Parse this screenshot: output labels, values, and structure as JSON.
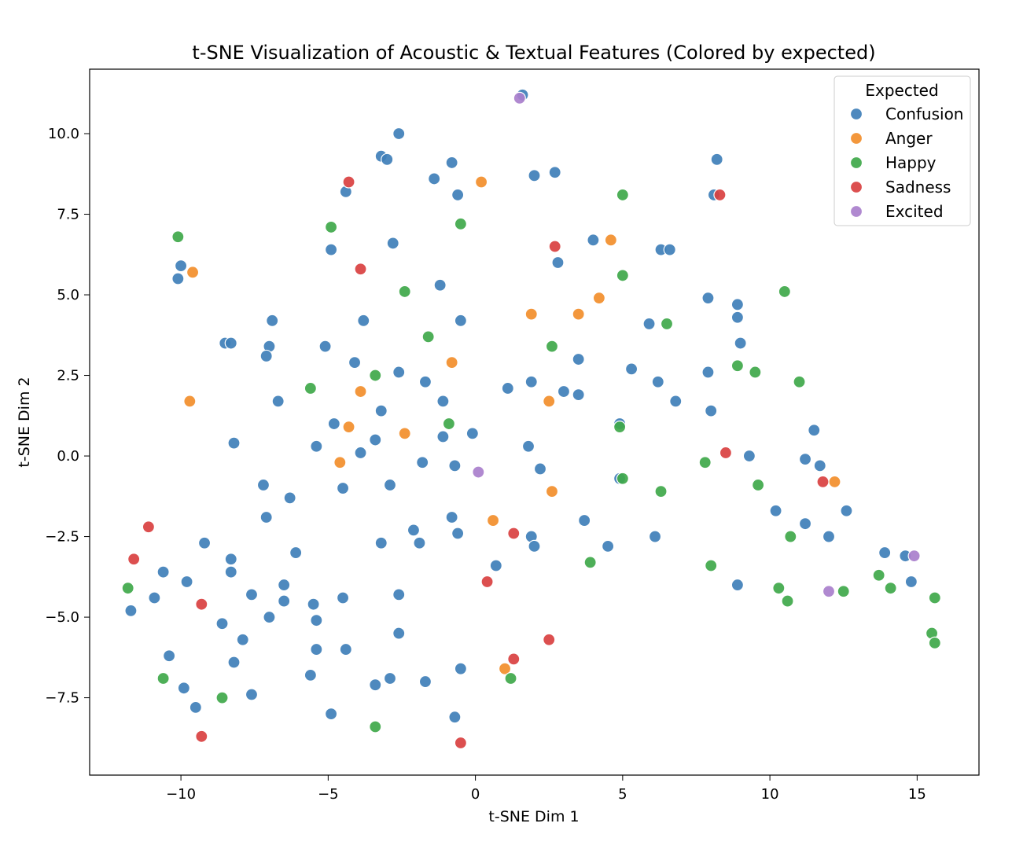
{
  "chart_data": {
    "type": "scatter",
    "title": "t-SNE Visualization of Acoustic & Textual Features (Colored by expected)",
    "xlabel": "t-SNE Dim 1",
    "ylabel": "t-SNE Dim 2",
    "xlim": [
      -13.1,
      17.1
    ],
    "ylim": [
      -9.9,
      12.0
    ],
    "xticks": [
      -10,
      -5,
      0,
      5,
      10,
      15
    ],
    "xtick_labels": [
      "−10",
      "−5",
      "0",
      "5",
      "10",
      "15"
    ],
    "yticks": [
      -7.5,
      -5.0,
      -2.5,
      0.0,
      2.5,
      5.0,
      7.5,
      10.0
    ],
    "ytick_labels": [
      "−7.5",
      "−5.0",
      "−2.5",
      "0.0",
      "2.5",
      "5.0",
      "7.5",
      "10.0"
    ],
    "grid": false,
    "legend": {
      "title": "Expected",
      "placement": "top-right"
    },
    "series": [
      {
        "name": "Confusion",
        "color": "#3f7fb8",
        "points": [
          [
            1.6,
            11.2
          ],
          [
            -2.6,
            10.0
          ],
          [
            -3.2,
            9.3
          ],
          [
            -3.0,
            9.2
          ],
          [
            -0.8,
            9.1
          ],
          [
            8.2,
            9.2
          ],
          [
            -4.4,
            8.2
          ],
          [
            -1.4,
            8.6
          ],
          [
            2.0,
            8.7
          ],
          [
            2.7,
            8.8
          ],
          [
            -0.6,
            8.1
          ],
          [
            8.1,
            8.1
          ],
          [
            -10.0,
            5.9
          ],
          [
            -10.1,
            5.5
          ],
          [
            -4.9,
            6.4
          ],
          [
            -2.8,
            6.6
          ],
          [
            4.0,
            6.7
          ],
          [
            2.8,
            6.0
          ],
          [
            6.3,
            6.4
          ],
          [
            6.6,
            6.4
          ],
          [
            -1.2,
            5.3
          ],
          [
            7.9,
            4.9
          ],
          [
            8.9,
            4.7
          ],
          [
            8.9,
            4.3
          ],
          [
            -6.9,
            4.2
          ],
          [
            -3.8,
            4.2
          ],
          [
            -0.5,
            4.2
          ],
          [
            5.9,
            4.1
          ],
          [
            -8.5,
            3.5
          ],
          [
            -8.3,
            3.5
          ],
          [
            -7.0,
            3.4
          ],
          [
            -5.1,
            3.4
          ],
          [
            -7.1,
            3.1
          ],
          [
            -4.1,
            2.9
          ],
          [
            3.5,
            3.0
          ],
          [
            9.0,
            3.5
          ],
          [
            -2.6,
            2.6
          ],
          [
            -1.7,
            2.3
          ],
          [
            1.9,
            2.3
          ],
          [
            5.3,
            2.7
          ],
          [
            6.2,
            2.3
          ],
          [
            7.9,
            2.6
          ],
          [
            1.1,
            2.1
          ],
          [
            3.0,
            2.0
          ],
          [
            3.5,
            1.9
          ],
          [
            6.8,
            1.7
          ],
          [
            -6.7,
            1.7
          ],
          [
            -1.1,
            1.7
          ],
          [
            -3.2,
            1.4
          ],
          [
            8.0,
            1.4
          ],
          [
            -4.8,
            1.0
          ],
          [
            4.9,
            1.0
          ],
          [
            11.5,
            0.8
          ],
          [
            -8.2,
            0.4
          ],
          [
            -5.4,
            0.3
          ],
          [
            -3.4,
            0.5
          ],
          [
            -1.1,
            0.6
          ],
          [
            -0.1,
            0.7
          ],
          [
            -3.9,
            0.1
          ],
          [
            1.8,
            0.3
          ],
          [
            9.3,
            0.0
          ],
          [
            11.2,
            -0.1
          ],
          [
            11.7,
            -0.3
          ],
          [
            -1.8,
            -0.2
          ],
          [
            -0.7,
            -0.3
          ],
          [
            2.2,
            -0.4
          ],
          [
            4.9,
            -0.7
          ],
          [
            -7.2,
            -0.9
          ],
          [
            -4.5,
            -1.0
          ],
          [
            -2.9,
            -0.9
          ],
          [
            -6.3,
            -1.3
          ],
          [
            10.2,
            -1.7
          ],
          [
            12.6,
            -1.7
          ],
          [
            -7.1,
            -1.9
          ],
          [
            -0.8,
            -1.9
          ],
          [
            3.7,
            -2.0
          ],
          [
            11.2,
            -2.1
          ],
          [
            -2.1,
            -2.3
          ],
          [
            -0.6,
            -2.4
          ],
          [
            6.1,
            -2.5
          ],
          [
            12.0,
            -2.5
          ],
          [
            1.9,
            -2.5
          ],
          [
            -9.2,
            -2.7
          ],
          [
            -3.2,
            -2.7
          ],
          [
            -1.9,
            -2.7
          ],
          [
            2.0,
            -2.8
          ],
          [
            4.5,
            -2.8
          ],
          [
            -6.1,
            -3.0
          ],
          [
            -8.3,
            -3.2
          ],
          [
            13.9,
            -3.0
          ],
          [
            14.6,
            -3.1
          ],
          [
            -8.3,
            -3.6
          ],
          [
            0.7,
            -3.4
          ],
          [
            -10.6,
            -3.6
          ],
          [
            -9.8,
            -3.9
          ],
          [
            14.8,
            -3.9
          ],
          [
            -6.5,
            -4.0
          ],
          [
            8.9,
            -4.0
          ],
          [
            -7.6,
            -4.3
          ],
          [
            -10.9,
            -4.4
          ],
          [
            -4.5,
            -4.4
          ],
          [
            -2.6,
            -4.3
          ],
          [
            -6.5,
            -4.5
          ],
          [
            -11.7,
            -4.8
          ],
          [
            -5.5,
            -4.6
          ],
          [
            -7.0,
            -5.0
          ],
          [
            -8.6,
            -5.2
          ],
          [
            -5.4,
            -5.1
          ],
          [
            -7.9,
            -5.7
          ],
          [
            -2.6,
            -5.5
          ],
          [
            -5.4,
            -6.0
          ],
          [
            -4.4,
            -6.0
          ],
          [
            -10.4,
            -6.2
          ],
          [
            -8.2,
            -6.4
          ],
          [
            -0.5,
            -6.6
          ],
          [
            -5.6,
            -6.8
          ],
          [
            -2.9,
            -6.9
          ],
          [
            -1.7,
            -7.0
          ],
          [
            -3.4,
            -7.1
          ],
          [
            -9.9,
            -7.2
          ],
          [
            -7.6,
            -7.4
          ],
          [
            -9.5,
            -7.8
          ],
          [
            -4.9,
            -8.0
          ],
          [
            -0.7,
            -8.1
          ]
        ]
      },
      {
        "name": "Anger",
        "color": "#f28e2b",
        "points": [
          [
            0.2,
            8.5
          ],
          [
            4.6,
            6.7
          ],
          [
            -9.6,
            5.7
          ],
          [
            4.2,
            4.9
          ],
          [
            1.9,
            4.4
          ],
          [
            3.5,
            4.4
          ],
          [
            -0.8,
            2.9
          ],
          [
            -3.9,
            2.0
          ],
          [
            -9.7,
            1.7
          ],
          [
            2.5,
            1.7
          ],
          [
            -4.3,
            0.9
          ],
          [
            -2.4,
            0.7
          ],
          [
            -4.6,
            -0.2
          ],
          [
            12.2,
            -0.8
          ],
          [
            2.6,
            -1.1
          ],
          [
            0.6,
            -2.0
          ],
          [
            1.0,
            -6.6
          ]
        ]
      },
      {
        "name": "Happy",
        "color": "#3fa84a",
        "points": [
          [
            5.0,
            8.1
          ],
          [
            -10.1,
            6.8
          ],
          [
            -4.9,
            7.1
          ],
          [
            -0.5,
            7.2
          ],
          [
            -2.4,
            5.1
          ],
          [
            5.0,
            5.6
          ],
          [
            10.5,
            5.1
          ],
          [
            6.5,
            4.1
          ],
          [
            -1.6,
            3.7
          ],
          [
            2.6,
            3.4
          ],
          [
            8.9,
            2.8
          ],
          [
            9.5,
            2.6
          ],
          [
            -3.4,
            2.5
          ],
          [
            -5.6,
            2.1
          ],
          [
            11.0,
            2.3
          ],
          [
            -0.9,
            1.0
          ],
          [
            4.9,
            0.9
          ],
          [
            7.8,
            -0.2
          ],
          [
            5.0,
            -0.7
          ],
          [
            9.6,
            -0.9
          ],
          [
            6.3,
            -1.1
          ],
          [
            10.7,
            -2.5
          ],
          [
            3.9,
            -3.3
          ],
          [
            8.0,
            -3.4
          ],
          [
            13.7,
            -3.7
          ],
          [
            -11.8,
            -4.1
          ],
          [
            10.3,
            -4.1
          ],
          [
            14.1,
            -4.1
          ],
          [
            12.5,
            -4.2
          ],
          [
            10.6,
            -4.5
          ],
          [
            15.6,
            -4.4
          ],
          [
            15.5,
            -5.5
          ],
          [
            15.6,
            -5.8
          ],
          [
            -10.6,
            -6.9
          ],
          [
            1.2,
            -6.9
          ],
          [
            -8.6,
            -7.5
          ],
          [
            -3.4,
            -8.4
          ]
        ]
      },
      {
        "name": "Sadness",
        "color": "#d94040",
        "points": [
          [
            -4.3,
            8.5
          ],
          [
            8.3,
            8.1
          ],
          [
            2.7,
            6.5
          ],
          [
            -3.9,
            5.8
          ],
          [
            8.5,
            0.1
          ],
          [
            11.8,
            -0.8
          ],
          [
            -11.1,
            -2.2
          ],
          [
            1.3,
            -2.4
          ],
          [
            -11.6,
            -3.2
          ],
          [
            0.4,
            -3.9
          ],
          [
            -9.3,
            -4.6
          ],
          [
            2.5,
            -5.7
          ],
          [
            1.3,
            -6.3
          ],
          [
            -9.3,
            -8.7
          ],
          [
            -0.5,
            -8.9
          ]
        ]
      },
      {
        "name": "Excited",
        "color": "#a97fcc",
        "points": [
          [
            1.5,
            11.1
          ],
          [
            0.1,
            -0.5
          ],
          [
            14.9,
            -3.1
          ],
          [
            12.0,
            -4.2
          ]
        ]
      }
    ]
  }
}
